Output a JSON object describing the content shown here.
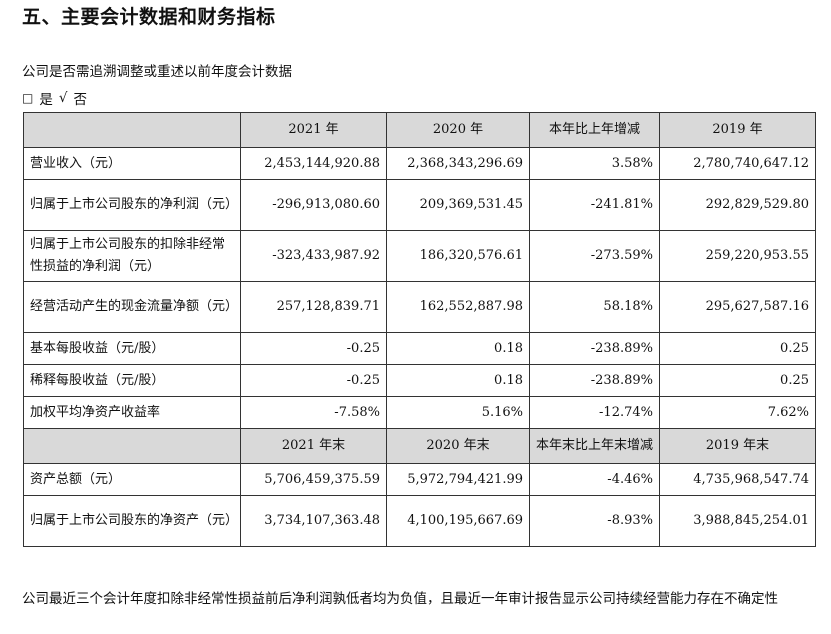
{
  "heading": "五、主要会计数据和财务指标",
  "question": "公司是否需追溯调整或重述以前年度会计数据",
  "options": {
    "box": "□",
    "yes": "是",
    "check": "√",
    "no": "否"
  },
  "header1": [
    "",
    "2021 年",
    "2020 年",
    "本年比上年增减",
    "2019 年"
  ],
  "rows1": [
    {
      "label": "营业收入（元）",
      "v2021": "2,453,144,920.88",
      "v2020": "2,368,343,296.69",
      "change": "3.58%",
      "v2019": "2,780,740,647.12"
    },
    {
      "label": "归属于上市公司股东的净利润（元）",
      "v2021": "-296,913,080.60",
      "v2020": "209,369,531.45",
      "change": "-241.81%",
      "v2019": "292,829,529.80"
    },
    {
      "label": "归属于上市公司股东的扣除非经常性损益的净利润（元）",
      "v2021": "-323,433,987.92",
      "v2020": "186,320,576.61",
      "change": "-273.59%",
      "v2019": "259,220,953.55"
    },
    {
      "label": "经营活动产生的现金流量净额（元）",
      "v2021": "257,128,839.71",
      "v2020": "162,552,887.98",
      "change": "58.18%",
      "v2019": "295,627,587.16"
    },
    {
      "label": "基本每股收益（元/股）",
      "v2021": "-0.25",
      "v2020": "0.18",
      "change": "-238.89%",
      "v2019": "0.25"
    },
    {
      "label": "稀释每股收益（元/股）",
      "v2021": "-0.25",
      "v2020": "0.18",
      "change": "-238.89%",
      "v2019": "0.25"
    },
    {
      "label": "加权平均净资产收益率",
      "v2021": "-7.58%",
      "v2020": "5.16%",
      "change": "-12.74%",
      "v2019": "7.62%"
    }
  ],
  "header2": [
    "",
    "2021 年末",
    "2020 年末",
    "本年末比上年末增减",
    "2019 年末"
  ],
  "rows2": [
    {
      "label": "资产总额（元）",
      "v2021": "5,706,459,375.59",
      "v2020": "5,972,794,421.99",
      "change": "-4.46%",
      "v2019": "4,735,968,547.74"
    },
    {
      "label": "归属于上市公司股东的净资产（元）",
      "v2021": "3,734,107,363.48",
      "v2020": "4,100,195,667.69",
      "change": "-8.93%",
      "v2019": "3,988,845,254.01"
    }
  ],
  "footnote": "公司最近三个会计年度扣除非经常性损益前后净利润孰低者均为负值，且最近一年审计报告显示公司持续经营能力存在不确定性"
}
